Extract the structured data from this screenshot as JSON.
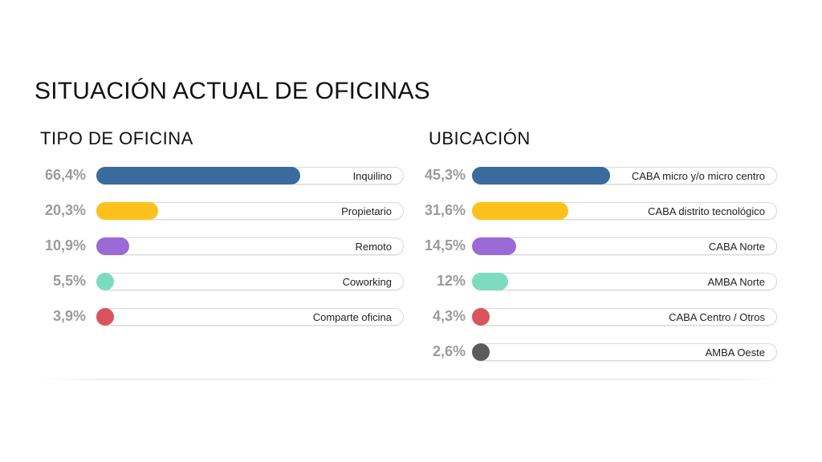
{
  "title": "SITUACIÓN ACTUAL DE OFICINAS",
  "chart_data": [
    {
      "type": "bar",
      "orientation": "horizontal",
      "title": "TIPO DE OFICINA",
      "unit": "%",
      "xlim": [
        0,
        100
      ],
      "categories": [
        "Inquilino",
        "Propietario",
        "Remoto",
        "Coworking",
        "Comparte oficina"
      ],
      "values": [
        66.4,
        20.3,
        10.9,
        5.5,
        3.9
      ],
      "value_labels": [
        "66,4%",
        "20,3%",
        "10,9%",
        "5,5%",
        "3,9%"
      ],
      "colors": [
        "#3a6b9d",
        "#fcc21b",
        "#9b6ad6",
        "#7ddcbe",
        "#d9555e"
      ]
    },
    {
      "type": "bar",
      "orientation": "horizontal",
      "title": "UBICACIÓN",
      "unit": "%",
      "xlim": [
        0,
        100
      ],
      "categories": [
        "CABA micro y/o micro centro",
        "CABA distrito tecnológico",
        "CABA Norte",
        "AMBA Norte",
        "CABA Centro / Otros",
        "AMBA Oeste"
      ],
      "values": [
        45.3,
        31.6,
        14.5,
        12,
        4.3,
        2.6
      ],
      "value_labels": [
        "45,3%",
        "31,6%",
        "14,5%",
        "12%",
        "4,3%",
        "2,6%"
      ],
      "colors": [
        "#3a6b9d",
        "#fcc21b",
        "#9b6ad6",
        "#7ddcbe",
        "#d9555e",
        "#5b5b5b"
      ]
    }
  ]
}
